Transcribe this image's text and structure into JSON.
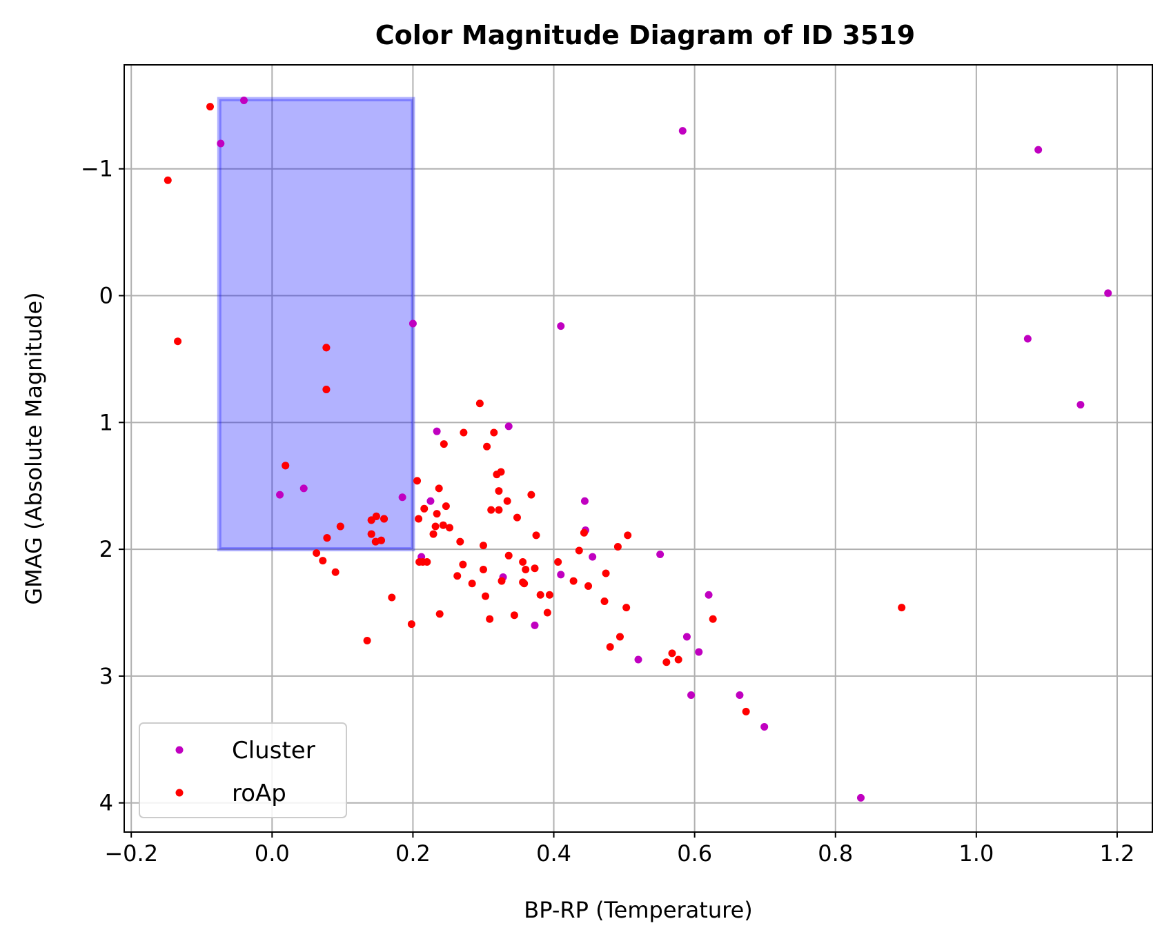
{
  "chart_data": {
    "type": "scatter",
    "title": "Color Magnitude Diagram of ID 3519",
    "xlabel": "BP-RP (Temperature)",
    "ylabel": "GMAG (Absolute Magnitude)",
    "xlim": [
      -0.21,
      1.25
    ],
    "ylim": [
      4.23,
      -1.82
    ],
    "y_inverted": true,
    "grid": true,
    "legend_position": "lower-left",
    "x_ticks": [
      -0.2,
      0.0,
      0.2,
      0.4,
      0.6,
      0.8,
      1.0,
      1.2
    ],
    "x_tick_labels": [
      "−0.2",
      "0.0",
      "0.2",
      "0.4",
      "0.6",
      "0.8",
      "1.0",
      "1.2"
    ],
    "y_ticks": [
      -1,
      0,
      1,
      2,
      3,
      4
    ],
    "y_tick_labels": [
      "−1",
      "0",
      "1",
      "2",
      "3",
      "4"
    ],
    "highlight_region": {
      "x": [
        -0.075,
        0.2
      ],
      "y": [
        -1.55,
        2.0
      ],
      "color": "#0000ff",
      "opacity": 0.3
    },
    "series": [
      {
        "name": "Cluster",
        "color": "#c000c0",
        "points": [
          [
            -0.04,
            -1.54
          ],
          [
            -0.073,
            -1.2
          ],
          [
            0.583,
            -1.3
          ],
          [
            1.088,
            -1.15
          ],
          [
            0.2,
            0.22
          ],
          [
            0.41,
            0.24
          ],
          [
            1.187,
            -0.02
          ],
          [
            1.073,
            0.34
          ],
          [
            1.148,
            0.86
          ],
          [
            0.234,
            1.07
          ],
          [
            0.336,
            1.03
          ],
          [
            0.011,
            1.57
          ],
          [
            0.045,
            1.52
          ],
          [
            0.185,
            1.59
          ],
          [
            0.225,
            1.62
          ],
          [
            0.444,
            1.62
          ],
          [
            0.445,
            1.85
          ],
          [
            0.455,
            2.06
          ],
          [
            0.212,
            2.06
          ],
          [
            0.551,
            2.04
          ],
          [
            0.41,
            2.2
          ],
          [
            0.328,
            2.22
          ],
          [
            0.373,
            2.6
          ],
          [
            0.62,
            2.36
          ],
          [
            0.589,
            2.69
          ],
          [
            0.606,
            2.81
          ],
          [
            0.52,
            2.87
          ],
          [
            0.595,
            3.15
          ],
          [
            0.664,
            3.15
          ],
          [
            0.699,
            3.4
          ],
          [
            0.836,
            3.96
          ],
          [
            0.077,
            0.41
          ],
          [
            0.077,
            0.74
          ],
          [
            0.019,
            1.34
          ],
          [
            0.097,
            1.82
          ],
          [
            0.141,
            1.77
          ],
          [
            0.148,
            1.74
          ],
          [
            0.159,
            1.76
          ],
          [
            0.141,
            1.88
          ],
          [
            0.147,
            1.94
          ],
          [
            0.155,
            1.93
          ],
          [
            0.078,
            1.91
          ]
        ]
      },
      {
        "name": "roAp",
        "color": "#ff0000",
        "points": [
          [
            -0.088,
            -1.49
          ],
          [
            -0.148,
            -0.91
          ],
          [
            -0.134,
            0.36
          ],
          [
            0.077,
            0.41
          ],
          [
            0.077,
            0.74
          ],
          [
            0.019,
            1.34
          ],
          [
            0.097,
            1.82
          ],
          [
            0.141,
            1.77
          ],
          [
            0.148,
            1.74
          ],
          [
            0.159,
            1.76
          ],
          [
            0.141,
            1.88
          ],
          [
            0.147,
            1.94
          ],
          [
            0.155,
            1.93
          ],
          [
            0.078,
            1.91
          ],
          [
            0.063,
            2.03
          ],
          [
            0.072,
            2.09
          ],
          [
            0.09,
            2.18
          ],
          [
            0.135,
            2.72
          ],
          [
            0.17,
            2.38
          ],
          [
            0.198,
            2.59
          ],
          [
            0.206,
            1.46
          ],
          [
            0.208,
            1.76
          ],
          [
            0.209,
            2.1
          ],
          [
            0.214,
            2.1
          ],
          [
            0.22,
            2.1
          ],
          [
            0.216,
            1.68
          ],
          [
            0.229,
            1.88
          ],
          [
            0.232,
            1.82
          ],
          [
            0.234,
            1.72
          ],
          [
            0.237,
            1.52
          ],
          [
            0.238,
            2.51
          ],
          [
            0.243,
            1.81
          ],
          [
            0.244,
            1.17
          ],
          [
            0.247,
            1.66
          ],
          [
            0.252,
            1.83
          ],
          [
            0.263,
            2.21
          ],
          [
            0.267,
            1.94
          ],
          [
            0.271,
            2.12
          ],
          [
            0.272,
            1.08
          ],
          [
            0.284,
            2.27
          ],
          [
            0.295,
            0.85
          ],
          [
            0.3,
            1.97
          ],
          [
            0.3,
            2.16
          ],
          [
            0.303,
            2.37
          ],
          [
            0.305,
            1.19
          ],
          [
            0.309,
            2.55
          ],
          [
            0.311,
            1.69
          ],
          [
            0.315,
            1.08
          ],
          [
            0.319,
            1.41
          ],
          [
            0.322,
            1.69
          ],
          [
            0.322,
            1.54
          ],
          [
            0.325,
            1.39
          ],
          [
            0.326,
            2.25
          ],
          [
            0.334,
            1.62
          ],
          [
            0.336,
            2.05
          ],
          [
            0.344,
            2.52
          ],
          [
            0.348,
            1.75
          ],
          [
            0.356,
            2.1
          ],
          [
            0.356,
            2.26
          ],
          [
            0.358,
            2.27
          ],
          [
            0.36,
            2.16
          ],
          [
            0.368,
            1.57
          ],
          [
            0.373,
            2.15
          ],
          [
            0.375,
            1.89
          ],
          [
            0.381,
            2.36
          ],
          [
            0.391,
            2.5
          ],
          [
            0.394,
            2.36
          ],
          [
            0.406,
            2.1
          ],
          [
            0.428,
            2.25
          ],
          [
            0.436,
            2.01
          ],
          [
            0.443,
            1.87
          ],
          [
            0.449,
            2.29
          ],
          [
            0.472,
            2.41
          ],
          [
            0.474,
            2.19
          ],
          [
            0.48,
            2.77
          ],
          [
            0.491,
            1.98
          ],
          [
            0.494,
            2.69
          ],
          [
            0.503,
            2.46
          ],
          [
            0.505,
            1.89
          ],
          [
            0.56,
            2.89
          ],
          [
            0.568,
            2.82
          ],
          [
            0.577,
            2.87
          ],
          [
            0.626,
            2.55
          ],
          [
            0.673,
            3.28
          ],
          [
            0.894,
            2.46
          ]
        ]
      }
    ]
  }
}
